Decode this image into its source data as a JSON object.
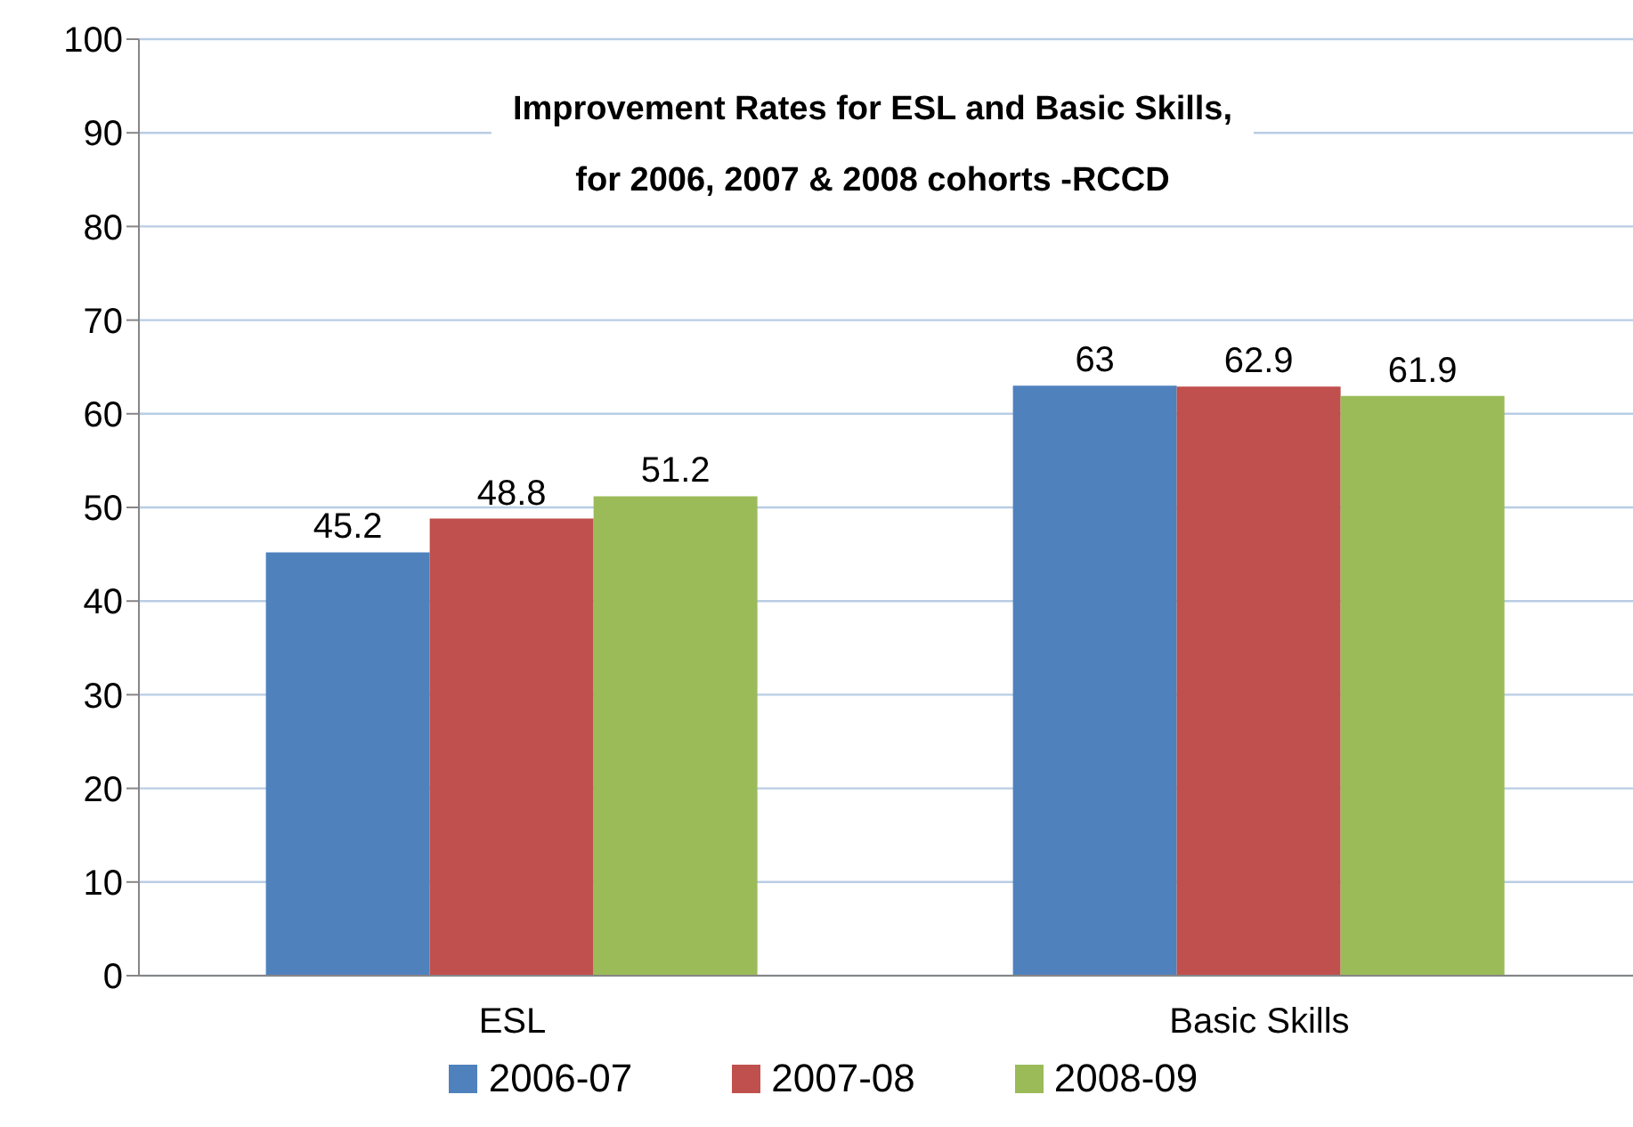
{
  "chart_data": {
    "type": "bar",
    "title": "Improvement Rates for ESL and Basic Skills,\nfor 2006, 2007 & 2008 cohorts -RCCD",
    "categories": [
      "ESL",
      "Basic Skills"
    ],
    "series": [
      {
        "name": "2006-07",
        "color": "#4f81bd",
        "values": [
          45.2,
          63
        ]
      },
      {
        "name": "2007-08",
        "color": "#c0504d",
        "values": [
          48.8,
          62.9
        ]
      },
      {
        "name": "2008-09",
        "color": "#9bbb59",
        "values": [
          51.2,
          61.9
        ]
      }
    ],
    "ylim": [
      0,
      100
    ],
    "yticks": [
      0,
      10,
      20,
      30,
      40,
      50,
      60,
      70,
      80,
      90,
      100
    ],
    "grid": "y",
    "legend": "bottom",
    "data_labels": true
  }
}
